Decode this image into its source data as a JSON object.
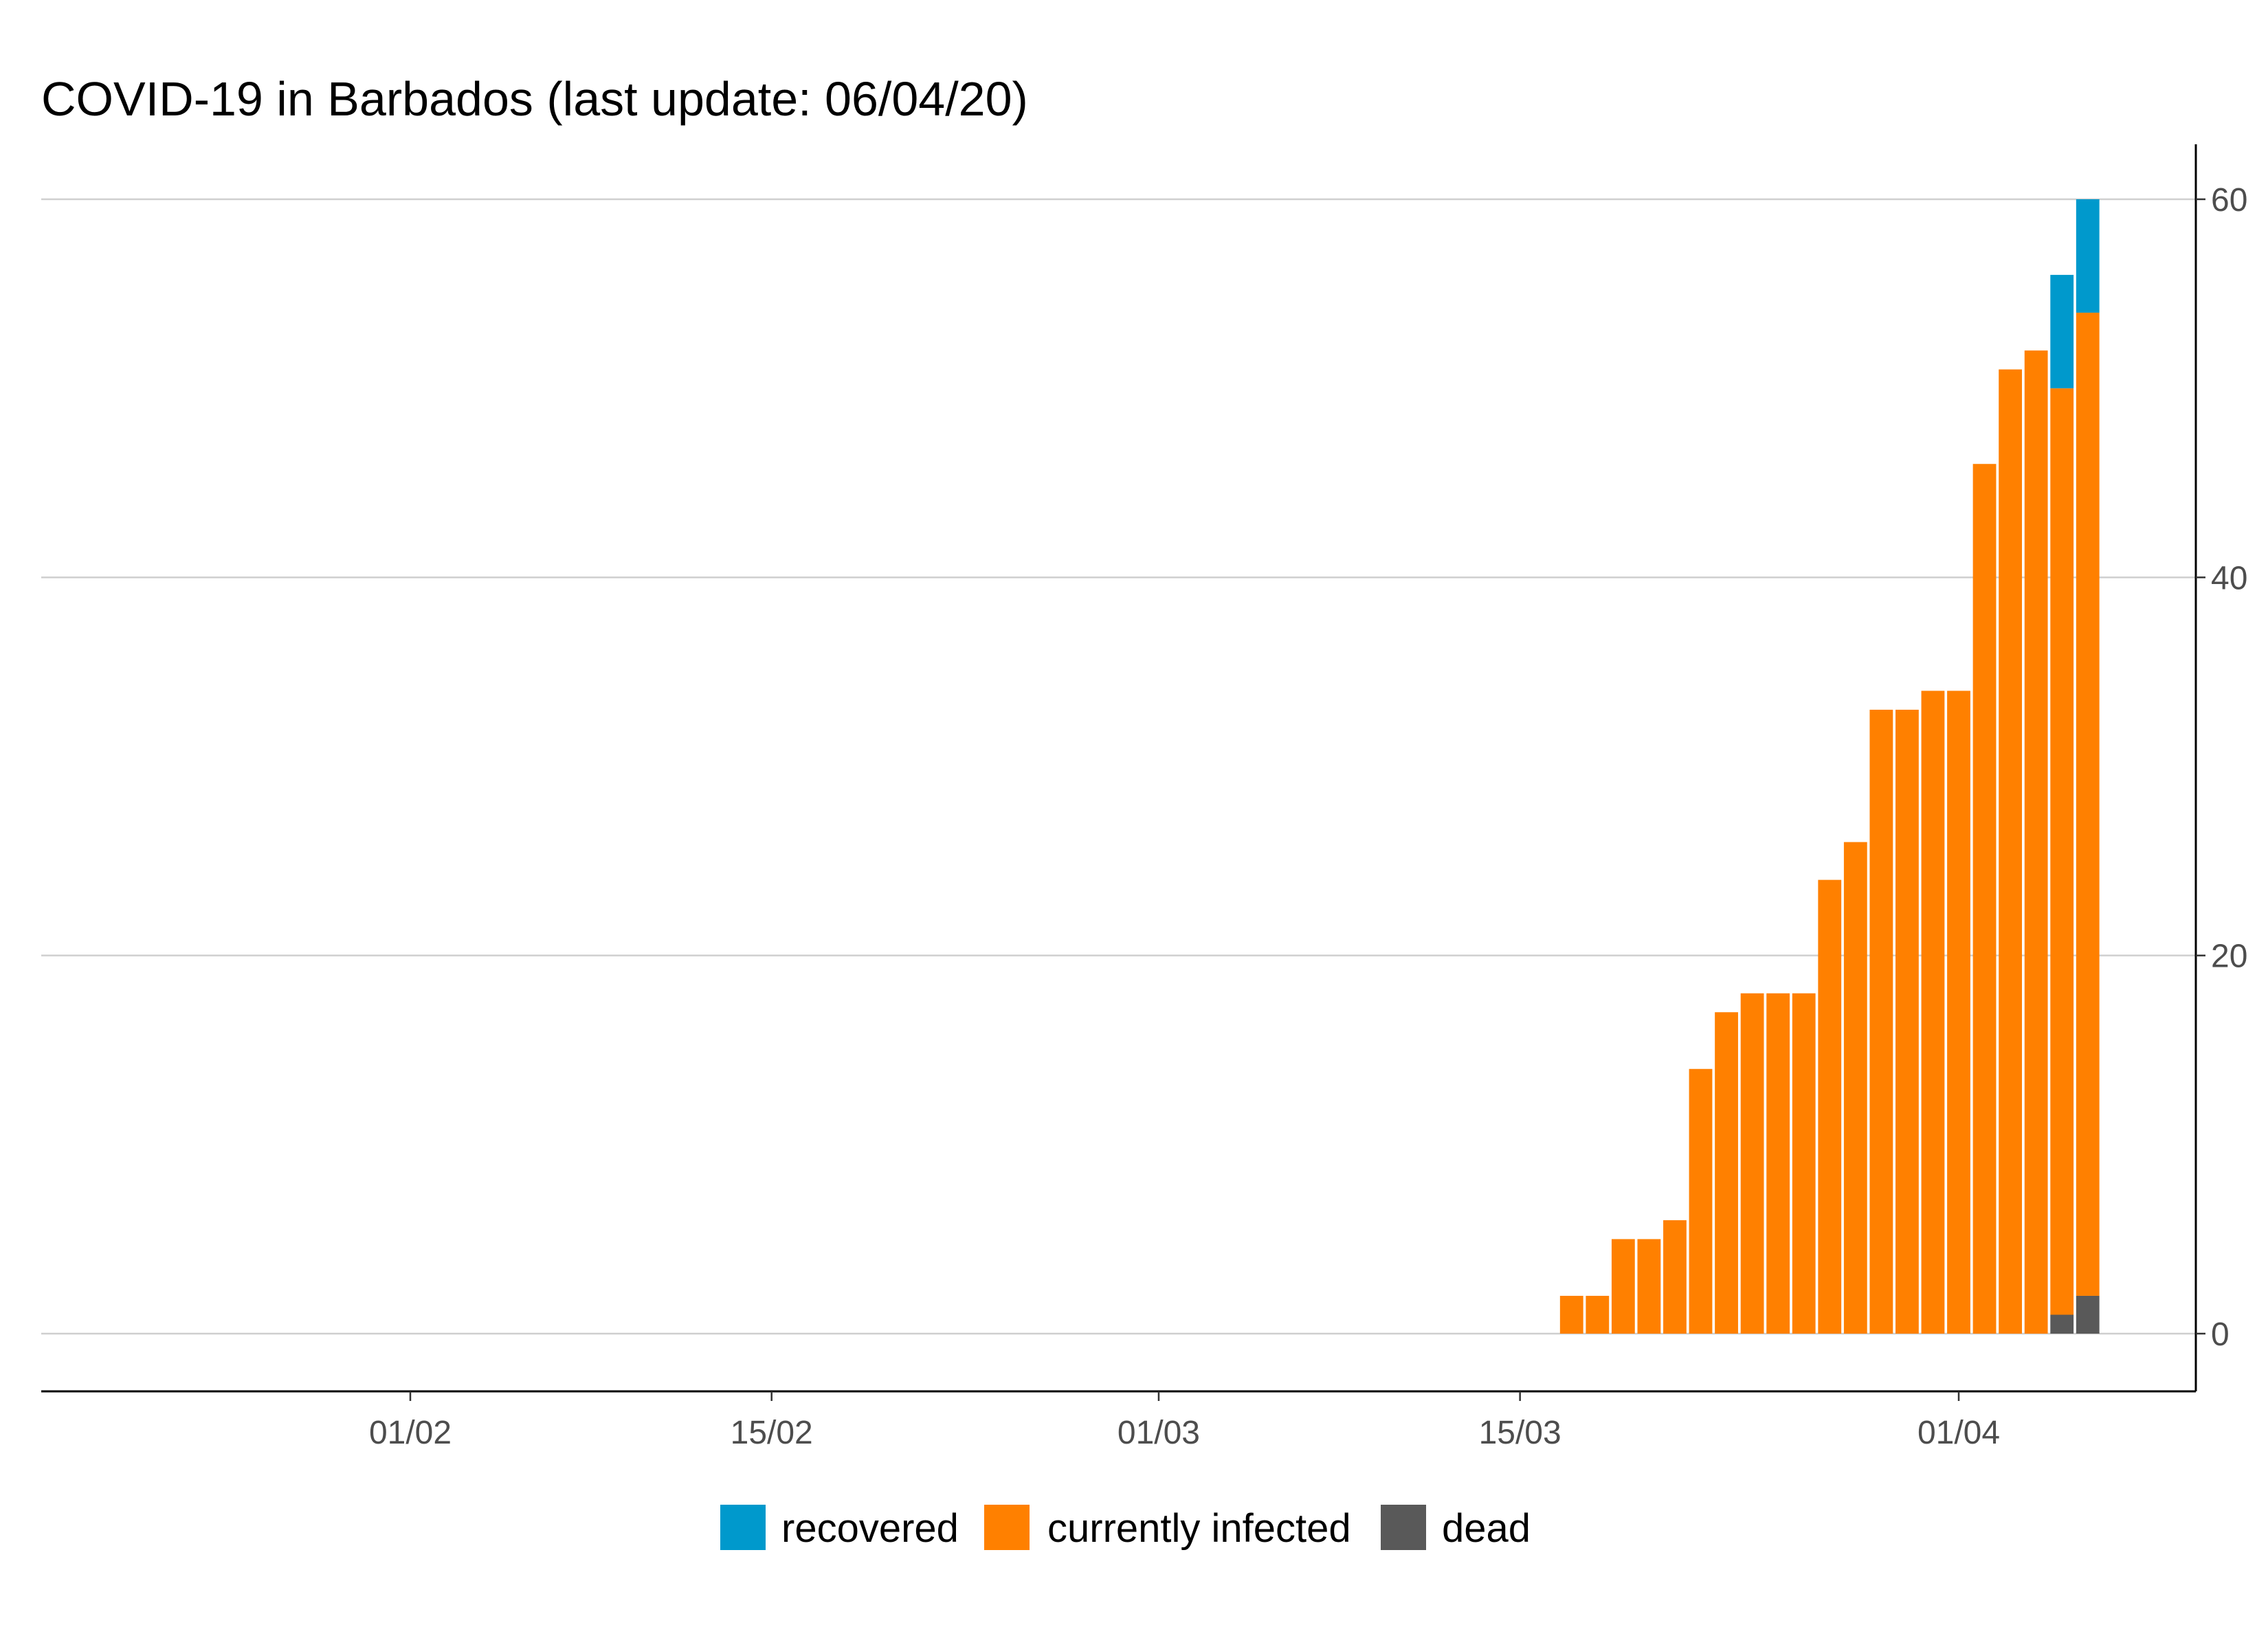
{
  "chart_data": {
    "type": "bar",
    "stacked": true,
    "title": "COVID-19 in Barbados (last update: 06/04/20)",
    "xlabel": "",
    "ylabel": "",
    "ylim": [
      0,
      60
    ],
    "y_ticks": [
      "0",
      "20",
      "40",
      "60"
    ],
    "y_axis_position": "right",
    "grid": "horizontal",
    "legend_position": "bottom",
    "x_date_range": [
      "2020-01-22",
      "2020-04-06"
    ],
    "x_ticks": [
      {
        "label": "01/02",
        "date": "2020-02-01"
      },
      {
        "label": "15/02",
        "date": "2020-02-15"
      },
      {
        "label": "01/03",
        "date": "2020-03-01"
      },
      {
        "label": "15/03",
        "date": "2020-03-15"
      },
      {
        "label": "01/04",
        "date": "2020-04-01"
      }
    ],
    "categories": [
      "2020-03-17",
      "2020-03-18",
      "2020-03-19",
      "2020-03-20",
      "2020-03-21",
      "2020-03-22",
      "2020-03-23",
      "2020-03-24",
      "2020-03-25",
      "2020-03-26",
      "2020-03-27",
      "2020-03-28",
      "2020-03-29",
      "2020-03-30",
      "2020-03-31",
      "2020-04-01",
      "2020-04-02",
      "2020-04-03",
      "2020-04-04",
      "2020-04-05",
      "2020-04-06"
    ],
    "series": [
      {
        "name": "dead",
        "color": "#595959",
        "values": [
          0,
          0,
          0,
          0,
          0,
          0,
          0,
          0,
          0,
          0,
          0,
          0,
          0,
          0,
          0,
          0,
          0,
          0,
          0,
          1,
          2
        ]
      },
      {
        "name": "currently infected",
        "color": "#FF8000",
        "values": [
          2,
          2,
          5,
          5,
          6,
          14,
          17,
          18,
          18,
          18,
          24,
          26,
          33,
          33,
          34,
          34,
          46,
          51,
          52,
          49,
          52
        ]
      },
      {
        "name": "recovered",
        "color": "#0099CC",
        "values": [
          0,
          0,
          0,
          0,
          0,
          0,
          0,
          0,
          0,
          0,
          0,
          0,
          0,
          0,
          0,
          0,
          0,
          0,
          0,
          6,
          6
        ]
      }
    ],
    "legend": [
      {
        "label": "recovered",
        "color": "#0099CC"
      },
      {
        "label": "currently infected",
        "color": "#FF8000"
      },
      {
        "label": "dead",
        "color": "#595959"
      }
    ]
  }
}
